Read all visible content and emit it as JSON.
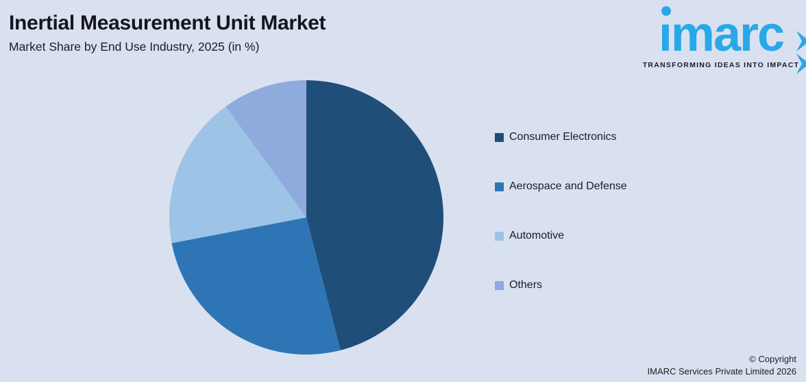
{
  "header": {
    "title": "Inertial Measurement Unit Market",
    "subtitle": "Market Share by End Use Industry, 2025 (in %)"
  },
  "logo": {
    "wordmark": "imarc",
    "wordmark_display": "ımarc",
    "tagline": "TRANSFORMING IDEAS INTO IMPACT"
  },
  "chart_data": {
    "type": "pie",
    "title": "Inertial Measurement Unit Market",
    "subtitle": "Market Share by End Use Industry, 2025 (in %)",
    "unit": "%",
    "labels": [
      "Consumer Electronics",
      "Aerospace and Defense",
      "Automotive",
      "Others"
    ],
    "values": [
      46,
      26,
      18,
      10
    ],
    "colors": [
      "#1F4E79",
      "#2E75B6",
      "#9DC3E6",
      "#8FAADC"
    ],
    "start_angle_deg": 0,
    "direction": "clockwise",
    "legend_position": "right",
    "data_labels": "none"
  },
  "footer": {
    "copyright_line1": "© Copyright",
    "copyright_line2": "IMARC Services Private Limited 2026"
  },
  "colors": {
    "background": "#D9E1F0",
    "brand": "#29A8E8",
    "text": "#14161C"
  }
}
